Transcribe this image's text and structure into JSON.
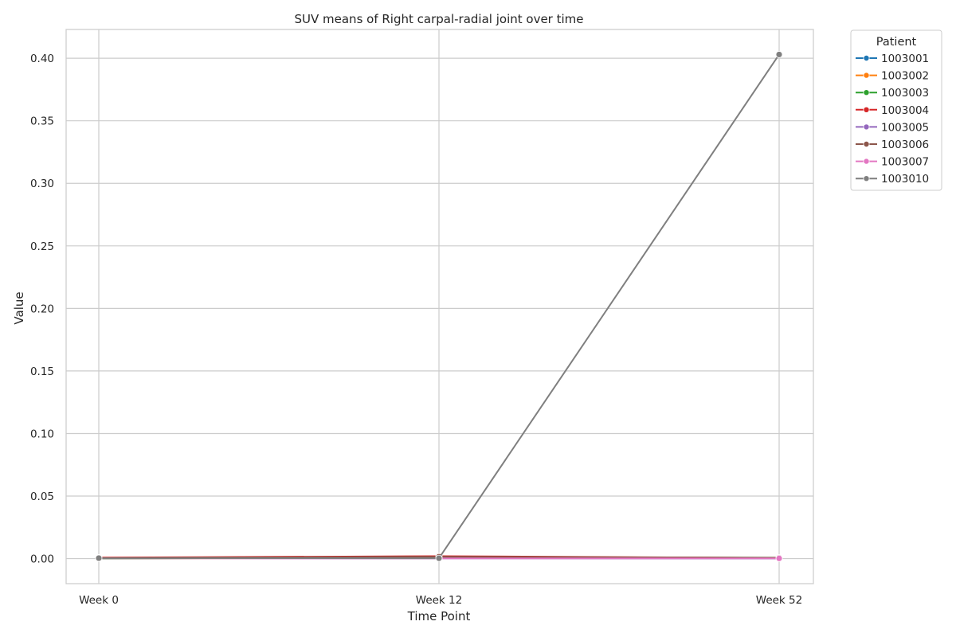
{
  "chart_data": {
    "type": "line",
    "title": "SUV means of Right carpal-radial joint over time",
    "xlabel": "Time Point",
    "ylabel": "Value",
    "categories": [
      "Week 0",
      "Week 12",
      "Week 52"
    ],
    "ylim": [
      -0.02,
      0.423
    ],
    "yticks": [
      0.0,
      0.05,
      0.1,
      0.15,
      0.2,
      0.25,
      0.3,
      0.35,
      0.4
    ],
    "grid": true,
    "legend": {
      "title": "Patient",
      "placement": "outside right"
    },
    "series": [
      {
        "name": "1003001",
        "color": "#1f77b4",
        "values": [
          0.0003,
          0.0004,
          0.0003
        ]
      },
      {
        "name": "1003002",
        "color": "#ff7f0e",
        "values": [
          0.0002,
          0.0005,
          0.0004
        ]
      },
      {
        "name": "1003003",
        "color": "#2ca02c",
        "values": [
          0.0001,
          0.001,
          0.0008
        ]
      },
      {
        "name": "1003004",
        "color": "#d62728",
        "values": [
          0.0008,
          0.002,
          0.0005
        ]
      },
      {
        "name": "1003005",
        "color": "#9467bd",
        "values": [
          0.0003,
          0.0002,
          0.0001
        ]
      },
      {
        "name": "1003006",
        "color": "#8c564b",
        "values": [
          0.0004,
          0.0015,
          0.0007
        ]
      },
      {
        "name": "1003007",
        "color": "#e377c2",
        "values": [
          0.0003,
          0.0002,
          0.0002
        ]
      },
      {
        "name": "1003010",
        "color": "#7f7f7f",
        "values": [
          0.0004,
          0.0003,
          0.403
        ]
      }
    ]
  }
}
